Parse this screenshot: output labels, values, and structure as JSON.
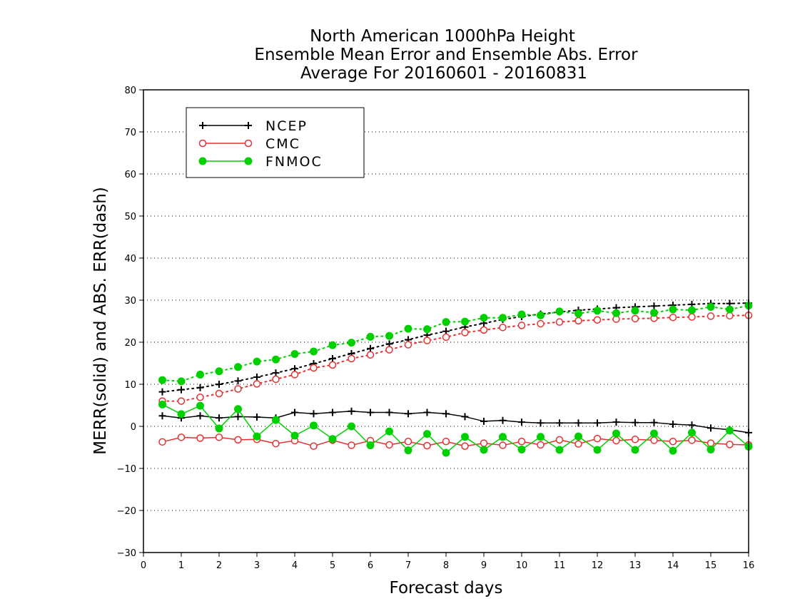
{
  "chart_data": {
    "type": "line",
    "title_lines": [
      "North American 1000hPa Height",
      "Ensemble Mean Error and Ensemble Abs. Error",
      "Average For 20160601 - 20160831"
    ],
    "xlabel": "Forecast days",
    "ylabel": "MERR(solid) and ABS. ERR(dash)",
    "xlim": [
      0,
      16
    ],
    "ylim": [
      -30,
      80
    ],
    "xticks": [
      0,
      1,
      2,
      3,
      4,
      5,
      6,
      7,
      8,
      9,
      10,
      11,
      12,
      13,
      14,
      15,
      16
    ],
    "yticks": [
      -30,
      -20,
      -10,
      0,
      10,
      20,
      30,
      40,
      50,
      60,
      70,
      80
    ],
    "grid": "horizontal dotted",
    "legend_position": "top-left",
    "x": [
      0.5,
      1,
      1.5,
      2,
      2.5,
      3,
      3.5,
      4,
      4.5,
      5,
      5.5,
      6,
      6.5,
      7,
      7.5,
      8,
      8.5,
      9,
      9.5,
      10,
      10.5,
      11,
      11.5,
      12,
      12.5,
      13,
      13.5,
      14,
      14.5,
      15,
      15.5,
      16
    ],
    "series": [
      {
        "name": "NCEP",
        "color": "#000000",
        "marker": "plus",
        "merr": [
          2.5,
          2.0,
          2.5,
          2.0,
          2.3,
          2.2,
          2.0,
          3.3,
          3.0,
          3.3,
          3.6,
          3.3,
          3.3,
          3.0,
          3.3,
          3.0,
          2.3,
          1.2,
          1.4,
          1.0,
          0.8,
          0.8,
          0.8,
          0.8,
          1.0,
          0.9,
          0.9,
          0.5,
          0.3,
          -0.4,
          -0.8,
          -1.5
        ],
        "abs_err": [
          8.2,
          8.7,
          9.2,
          10.0,
          10.8,
          11.7,
          12.7,
          13.7,
          14.9,
          16.1,
          17.3,
          18.5,
          19.6,
          20.6,
          21.7,
          22.6,
          23.6,
          24.5,
          25.4,
          26.1,
          26.7,
          27.2,
          27.6,
          27.9,
          28.2,
          28.4,
          28.6,
          28.8,
          29.0,
          29.2,
          29.2,
          29.3
        ]
      },
      {
        "name": "CMC",
        "color": "#e83030",
        "marker": "open-circle",
        "merr": [
          -3.7,
          -2.6,
          -2.8,
          -2.6,
          -3.2,
          -3.1,
          -4.1,
          -3.4,
          -4.7,
          -3.3,
          -4.5,
          -3.4,
          -4.4,
          -3.6,
          -4.6,
          -3.6,
          -4.7,
          -4.0,
          -4.5,
          -3.6,
          -4.4,
          -3.2,
          -4.2,
          -2.9,
          -3.4,
          -3.1,
          -3.3,
          -3.6,
          -3.3,
          -4.0,
          -4.3,
          -4.4
        ],
        "abs_err": [
          6.0,
          6.0,
          6.9,
          7.8,
          8.9,
          10.1,
          11.2,
          12.3,
          13.9,
          14.6,
          16.1,
          17.0,
          18.2,
          19.4,
          20.4,
          21.2,
          22.3,
          22.9,
          23.5,
          24.0,
          24.4,
          24.8,
          25.1,
          25.3,
          25.5,
          25.6,
          25.7,
          25.9,
          26.0,
          26.2,
          26.3,
          26.4
        ]
      },
      {
        "name": "FNMOC",
        "color": "#00d000",
        "marker": "filled-circle",
        "merr": [
          5.2,
          2.9,
          4.9,
          -0.5,
          4.1,
          -2.4,
          1.5,
          -2.2,
          0.2,
          -3.0,
          0.0,
          -4.5,
          -1.2,
          -5.7,
          -1.8,
          -6.3,
          -2.5,
          -5.6,
          -2.5,
          -5.5,
          -2.5,
          -5.6,
          -2.4,
          -5.6,
          -1.7,
          -5.6,
          -1.7,
          -5.8,
          -1.5,
          -5.5,
          -1.0,
          -4.8
        ],
        "abs_err": [
          11.0,
          10.7,
          12.3,
          13.1,
          14.1,
          15.4,
          15.9,
          17.2,
          17.8,
          19.3,
          19.9,
          21.3,
          21.5,
          23.2,
          23.1,
          24.8,
          24.9,
          25.8,
          25.8,
          26.6,
          26.4,
          27.3,
          26.8,
          27.5,
          26.9,
          27.5,
          27.0,
          27.8,
          27.6,
          28.4,
          27.8,
          28.7
        ]
      }
    ]
  }
}
